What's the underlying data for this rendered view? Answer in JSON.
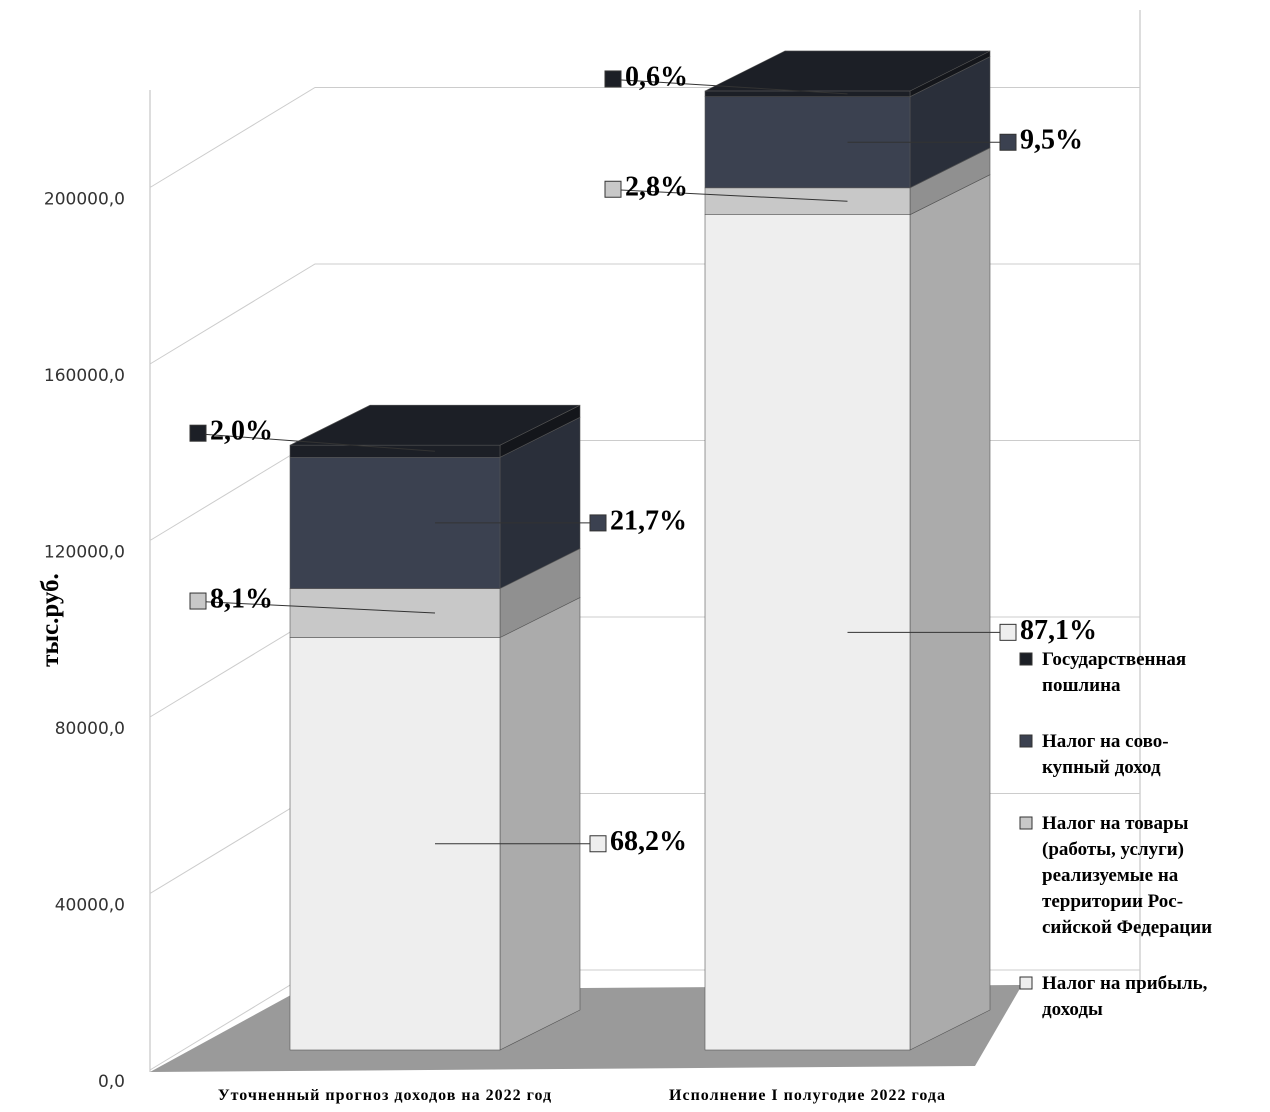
{
  "chart_data": {
    "type": "bar3d_stacked",
    "y_axis_label": "тыс.руб.",
    "categories": [
      "Уточненный прогноз доходов на 2022 год",
      "Исполнение I полугодие 2022 года"
    ],
    "series": [
      {
        "name": "Налог на прибыль,\nдоходы",
        "color": "#eeeeee",
        "values": [
          95480,
          193360
        ],
        "shares": [
          68.2,
          87.1
        ],
        "share_labels": [
          "68,2%",
          "87,1%"
        ]
      },
      {
        "name": "Налог на товары\n(работы, услуги)\nреализуемые на\nтерритории Рос-\nсийской Федерации",
        "color": "#c8c8c8",
        "values": [
          11340,
          6220
        ],
        "shares": [
          8.1,
          2.8
        ],
        "share_labels": [
          "8,1%",
          "2,8%"
        ]
      },
      {
        "name": "Налог на сово-\nкупный доход",
        "color": "#3b4150",
        "values": [
          30380,
          21090
        ],
        "shares": [
          21.7,
          9.5
        ],
        "share_labels": [
          "21,7%",
          "9,5%"
        ]
      },
      {
        "name": "Государственная\nпошлина",
        "color": "#1c1f26",
        "values": [
          2800,
          1330
        ],
        "shares": [
          2.0,
          0.6
        ],
        "share_labels": [
          "2,0%",
          "0,6%"
        ]
      }
    ],
    "ylim": [
      0,
      220000
    ],
    "yticks": [
      {
        "value": 0,
        "label": "0,0"
      },
      {
        "value": 40000,
        "label": "40000,0"
      },
      {
        "value": 80000,
        "label": "80000,0"
      },
      {
        "value": 120000,
        "label": "120000,0"
      },
      {
        "value": 160000,
        "label": "160000,0"
      },
      {
        "value": 200000,
        "label": "200000,0"
      }
    ],
    "grid": true
  }
}
